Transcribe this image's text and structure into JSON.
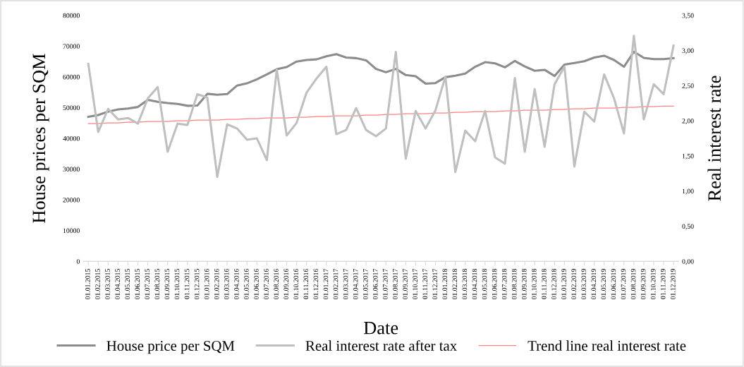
{
  "chart_data": {
    "type": "line",
    "xlabel": "Date",
    "ylabel": "House prices per SQM",
    "y2label": "Real interest rate",
    "categories": [
      "01.01.2015",
      "01.02.2015",
      "01.03.2015",
      "01.04.2015",
      "01.05.2015",
      "01.06.2015",
      "01.07.2015",
      "01.08.2015",
      "01.09.2015",
      "01.10.2015",
      "01.11.2015",
      "01.12.2015",
      "01.01.2016",
      "01.02.2016",
      "01.03.2016",
      "01.04.2016",
      "01.05.2016",
      "01.06.2016",
      "01.07.2016",
      "01.08.2016",
      "01.09.2016",
      "01.10.2016",
      "01.11.2016",
      "01.12.2016",
      "01.01.2017",
      "01.02.2017",
      "01.03.2017",
      "01.04.2017",
      "01.05.2017",
      "01.06.2017",
      "01.07.2017",
      "01.08.2017",
      "01.09.2017",
      "01.10.2017",
      "01.11.2017",
      "01.12.2017",
      "01.01.2018",
      "01.02.2018",
      "01.03.2018",
      "01.04.2018",
      "01.05.2018",
      "01.06.2018",
      "01.07.2018",
      "01.08.2018",
      "01.09.2018",
      "01.10.2018",
      "01.11.2018",
      "01.12.2018",
      "01.01.2019",
      "01.02.2019",
      "01.03.2019",
      "01.04.2019",
      "01.05.2019",
      "01.06.2019",
      "01.07.2019",
      "01.08.2019",
      "01.09.2019",
      "01.10.2019",
      "01.11.2019",
      "01.12.2019"
    ],
    "series": [
      {
        "name": "House price per SQM",
        "color": "#8c8c8c",
        "values": [
          47000,
          47600,
          48700,
          49400,
          49700,
          50200,
          52500,
          51900,
          51500,
          51200,
          50600,
          50700,
          54500,
          54200,
          54400,
          57200,
          57900,
          59200,
          60800,
          62500,
          63200,
          65000,
          65500,
          65700,
          66700,
          67400,
          66300,
          66100,
          65400,
          62600,
          61500,
          62600,
          60600,
          60200,
          57800,
          58000,
          59900,
          60400,
          61100,
          63300,
          64800,
          64400,
          63100,
          65200,
          63400,
          62000,
          62300,
          60300,
          64000,
          64500,
          65100,
          66300,
          66900,
          65500,
          63300,
          68200,
          66200,
          65800,
          65800,
          66100
        ]
      },
      {
        "name": "Real interest rate after tax",
        "color": "#bfbfbf",
        "axis": "y2",
        "values": [
          2.81,
          1.84,
          2.17,
          2.02,
          2.04,
          1.96,
          2.32,
          2.48,
          1.56,
          1.96,
          1.94,
          2.38,
          2.33,
          1.2,
          1.95,
          1.89,
          1.73,
          1.75,
          1.44,
          2.73,
          1.79,
          1.97,
          2.4,
          2.6,
          2.77,
          1.81,
          1.87,
          2.18,
          1.87,
          1.78,
          1.89,
          2.98,
          1.46,
          2.14,
          1.89,
          2.15,
          2.63,
          1.27,
          1.86,
          1.71,
          2.14,
          1.48,
          1.39,
          2.61,
          1.56,
          2.45,
          1.63,
          2.52,
          2.77,
          1.35,
          2.13,
          1.99,
          2.66,
          2.32,
          1.82,
          3.21,
          2.02,
          2.52,
          2.38,
          3.07
        ]
      },
      {
        "name": "Trend line real interest rate",
        "color": "#ff8080",
        "axis": "y2",
        "values": [
          1.96,
          1.96,
          1.97,
          1.97,
          1.98,
          1.98,
          1.99,
          1.99,
          1.99,
          2.0,
          2.0,
          2.01,
          2.01,
          2.01,
          2.02,
          2.02,
          2.03,
          2.03,
          2.04,
          2.04,
          2.04,
          2.05,
          2.05,
          2.06,
          2.06,
          2.07,
          2.07,
          2.07,
          2.08,
          2.08,
          2.09,
          2.09,
          2.1,
          2.1,
          2.1,
          2.11,
          2.11,
          2.12,
          2.12,
          2.13,
          2.13,
          2.13,
          2.14,
          2.14,
          2.15,
          2.15,
          2.15,
          2.16,
          2.16,
          2.17,
          2.17,
          2.18,
          2.18,
          2.18,
          2.19,
          2.19,
          2.2,
          2.2,
          2.21,
          2.21
        ]
      }
    ],
    "ylim": [
      0,
      80000
    ],
    "yticks": [
      0,
      10000,
      20000,
      30000,
      40000,
      50000,
      60000,
      70000,
      80000
    ],
    "y2lim": [
      0,
      3.5
    ],
    "y2ticks": [
      {
        "value": 0,
        "label": "0,00"
      },
      {
        "value": 0.5,
        "label": "0,50"
      },
      {
        "value": 1,
        "label": "1,00"
      },
      {
        "value": 1.5,
        "label": "1,50"
      },
      {
        "value": 2,
        "label": "2,00"
      },
      {
        "value": 2.5,
        "label": "2,50"
      },
      {
        "value": 3,
        "label": "3,00"
      },
      {
        "value": 3.5,
        "label": "3,50"
      }
    ],
    "grid": false,
    "legend": "bottom"
  }
}
